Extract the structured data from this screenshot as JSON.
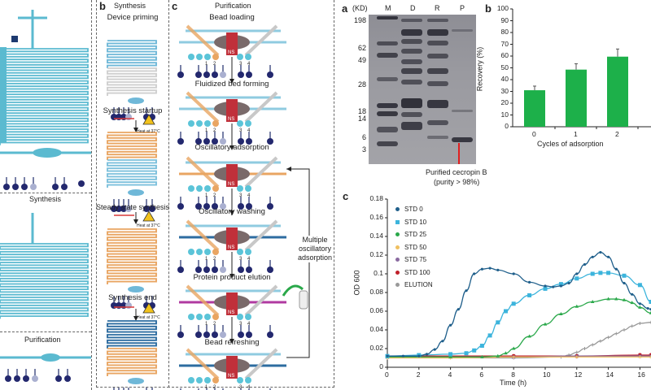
{
  "left_panel": {
    "section_labels": [
      "Synthesis",
      "Purification"
    ]
  },
  "panel_b": {
    "letter": "b",
    "title": "Synthesis",
    "steps": [
      "Device priming",
      "Synthesis startup",
      "Steady state synthesis",
      "Synthesis end"
    ],
    "heat_label": "Heat at 37°C"
  },
  "panel_c": {
    "letter": "c",
    "title": "Purification",
    "steps": [
      "Bead loading",
      "Fluidized bed forming",
      "Oscillatory adsorption",
      "Oscillatory washing",
      "Protein product elution",
      "Bead refreshing"
    ],
    "loop_label": [
      "Multiple",
      "oscillatory",
      "adsorption"
    ],
    "magnet_label": "NS",
    "port_numbers": [
      "1",
      "2",
      "3",
      "4"
    ]
  },
  "gel": {
    "letter": "a",
    "unit": "(KD)",
    "lanes": [
      "M",
      "D",
      "R",
      "P"
    ],
    "markers": [
      "198",
      "62",
      "49",
      "28",
      "18",
      "14",
      "6",
      "3"
    ],
    "annotation": [
      "Purified cecropin B",
      "(purity > 98%)"
    ],
    "arrow_color": "#e02020"
  },
  "chart_data": [
    {
      "letter": "b",
      "type": "bar",
      "categories": [
        "0",
        "1",
        "2"
      ],
      "values": [
        31,
        48.5,
        59.5
      ],
      "errors": [
        3.5,
        5,
        6.5
      ],
      "xlabel": "Cycles of adsorption",
      "ylabel": "Recovery (%)",
      "ylim": [
        0,
        100
      ],
      "yticks": [
        "0",
        "10",
        "20",
        "30",
        "40",
        "50",
        "60",
        "70",
        "80",
        "90",
        "100"
      ],
      "bar_color": "#1db04a",
      "grid": false
    },
    {
      "letter": "c",
      "type": "line",
      "xlabel": "Time (h)",
      "ylabel": "OD 600",
      "xlim": [
        0,
        16.7
      ],
      "ylim": [
        0,
        0.18
      ],
      "xticks": [
        "0",
        "2",
        "4",
        "6",
        "8",
        "10",
        "12",
        "14",
        "16"
      ],
      "yticks": [
        "0",
        "0.02",
        "0.04",
        "0.06",
        "0.08",
        "0.1",
        "0.12",
        "0.14",
        "0.16",
        "0.18"
      ],
      "legend": "top-left",
      "grid": false,
      "series": [
        {
          "name": "STD 0",
          "color": "#1f5f8b",
          "marker": "dot",
          "x": [
            0,
            1,
            2,
            2.5,
            3,
            3.5,
            4,
            4.5,
            5,
            5.5,
            6,
            6.5,
            7,
            8,
            9,
            10,
            10.5,
            11,
            11.5,
            12,
            12.5,
            13,
            13.5,
            14,
            14.5,
            15,
            15.5,
            16,
            16.5,
            16.7
          ],
          "y": [
            0.012,
            0.012,
            0.012,
            0.014,
            0.019,
            0.028,
            0.045,
            0.062,
            0.082,
            0.1,
            0.105,
            0.106,
            0.104,
            0.1,
            0.091,
            0.087,
            0.086,
            0.087,
            0.09,
            0.1,
            0.11,
            0.118,
            0.123,
            0.118,
            0.105,
            0.09,
            0.078,
            0.068,
            0.063,
            0.062
          ]
        },
        {
          "name": "STD 10",
          "color": "#3cb4dc",
          "marker": "square",
          "x": [
            0,
            2,
            4,
            5,
            5.5,
            6,
            6.5,
            7,
            7.5,
            8,
            9,
            10,
            11,
            12,
            13,
            13.5,
            14,
            15,
            16,
            16.7
          ],
          "y": [
            0.012,
            0.013,
            0.014,
            0.015,
            0.018,
            0.023,
            0.034,
            0.048,
            0.06,
            0.068,
            0.077,
            0.084,
            0.089,
            0.095,
            0.1,
            0.101,
            0.101,
            0.098,
            0.088,
            0.07
          ]
        },
        {
          "name": "STD 25",
          "color": "#2aa84a",
          "marker": "triangle",
          "x": [
            0,
            4,
            6,
            7,
            7.5,
            8,
            9,
            10,
            11,
            12,
            13,
            14,
            14.5,
            15,
            15.5,
            16,
            16.7
          ],
          "y": [
            0.011,
            0.011,
            0.011,
            0.012,
            0.015,
            0.02,
            0.033,
            0.046,
            0.057,
            0.065,
            0.07,
            0.073,
            0.073,
            0.072,
            0.069,
            0.064,
            0.058
          ]
        },
        {
          "name": "STD 50",
          "color": "#f0c060",
          "marker": "cross",
          "x": [
            0,
            4,
            8,
            12,
            16,
            16.7
          ],
          "y": [
            0.01,
            0.01,
            0.011,
            0.011,
            0.011,
            0.011
          ]
        },
        {
          "name": "STD 75",
          "color": "#8a6aa0",
          "marker": "x",
          "x": [
            0,
            4,
            8,
            12,
            16,
            16.7
          ],
          "y": [
            0.011,
            0.011,
            0.011,
            0.012,
            0.012,
            0.012
          ]
        },
        {
          "name": "STD 100",
          "color": "#c0202a",
          "marker": "dot",
          "x": [
            0,
            4,
            8,
            12,
            16,
            16.7
          ],
          "y": [
            0.012,
            0.012,
            0.012,
            0.012,
            0.013,
            0.013
          ]
        },
        {
          "name": "ELUTION",
          "color": "#999999",
          "marker": "plus",
          "x": [
            0,
            8,
            11,
            11.5,
            12,
            12.5,
            13,
            13.5,
            14,
            14.5,
            15,
            15.5,
            16,
            16.7
          ],
          "y": [
            0.01,
            0.01,
            0.011,
            0.013,
            0.016,
            0.02,
            0.024,
            0.028,
            0.032,
            0.036,
            0.04,
            0.044,
            0.047,
            0.048
          ]
        }
      ]
    }
  ]
}
